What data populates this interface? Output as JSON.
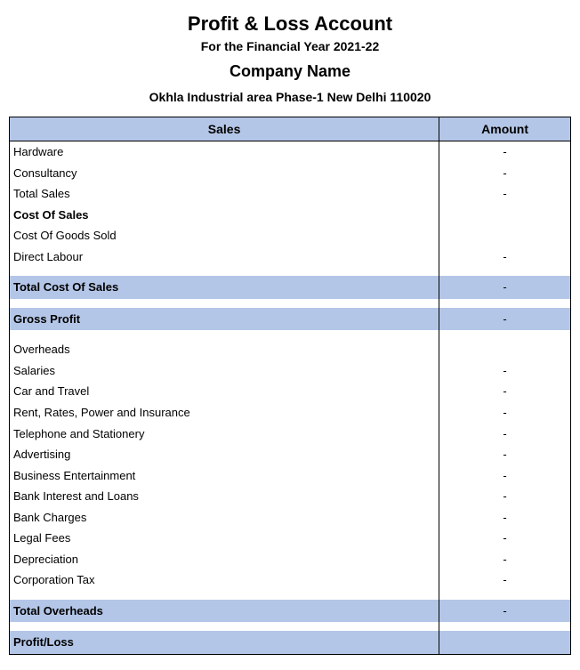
{
  "header": {
    "title": "Profit & Loss Account",
    "subtitle": "For the Financial Year 2021-22",
    "company": "Company Name",
    "address": "Okhla Industrial area Phase-1 New Delhi 110020"
  },
  "table": {
    "headers": {
      "sales": "Sales",
      "amount": "Amount"
    },
    "rows": [
      {
        "label": "Hardware",
        "amount": "-",
        "type": "normal"
      },
      {
        "label": "Consultancy",
        "amount": "-",
        "type": "normal"
      },
      {
        "label": "Total Sales",
        "amount": "-",
        "type": "normal"
      },
      {
        "label": "Cost Of Sales",
        "amount": "",
        "type": "bold"
      },
      {
        "label": "Cost Of Goods Sold",
        "amount": "",
        "type": "normal"
      },
      {
        "label": "Direct Labour",
        "amount": "-",
        "type": "normal"
      },
      {
        "label": "",
        "amount": "",
        "type": "spacer"
      },
      {
        "label": "Total Cost Of Sales",
        "amount": "-",
        "type": "highlight"
      },
      {
        "label": "",
        "amount": "",
        "type": "spacer"
      },
      {
        "label": "Gross Profit",
        "amount": "-",
        "type": "highlight"
      },
      {
        "label": "",
        "amount": "",
        "type": "spacer"
      },
      {
        "label": "Overheads",
        "amount": "",
        "type": "normal"
      },
      {
        "label": "Salaries",
        "amount": "-",
        "type": "normal"
      },
      {
        "label": "Car and Travel",
        "amount": "-",
        "type": "normal"
      },
      {
        "label": "Rent, Rates, Power and Insurance",
        "amount": "-",
        "type": "normal"
      },
      {
        "label": "Telephone and Stationery",
        "amount": "-",
        "type": "normal"
      },
      {
        "label": "Advertising",
        "amount": "-",
        "type": "normal"
      },
      {
        "label": "Business Entertainment",
        "amount": "-",
        "type": "normal"
      },
      {
        "label": "Bank Interest and Loans",
        "amount": "-",
        "type": "normal"
      },
      {
        "label": "Bank Charges",
        "amount": "-",
        "type": "normal"
      },
      {
        "label": "Legal Fees",
        "amount": "-",
        "type": "normal"
      },
      {
        "label": "Depreciation",
        "amount": "-",
        "type": "normal"
      },
      {
        "label": "Corporation Tax",
        "amount": "-",
        "type": "normal"
      },
      {
        "label": "",
        "amount": "",
        "type": "spacer"
      },
      {
        "label": "Total Overheads",
        "amount": "-",
        "type": "highlight"
      },
      {
        "label": "",
        "amount": "",
        "type": "spacer"
      },
      {
        "label": "Profit/Loss",
        "amount": "",
        "type": "highlight"
      }
    ]
  },
  "colors": {
    "highlight_bg": "#b4c6e7",
    "border": "#000000",
    "background": "#ffffff"
  }
}
